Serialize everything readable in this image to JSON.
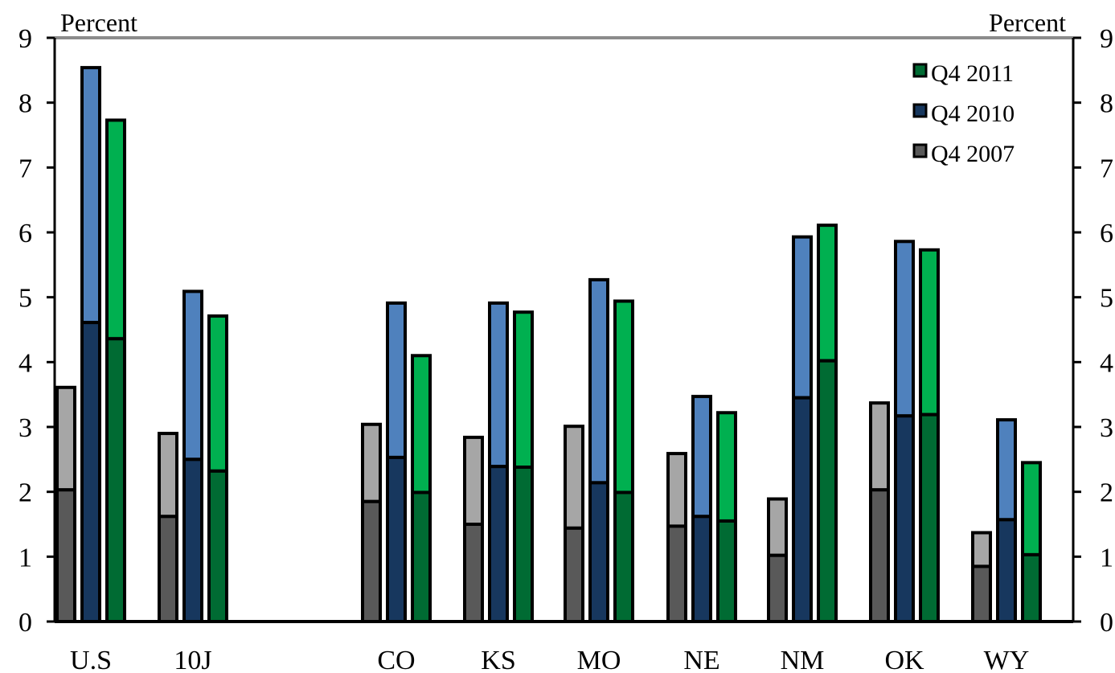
{
  "chart_data": {
    "type": "bar",
    "subtype": "overlapping stacked bars (bottom segment and total per period)",
    "title": "",
    "y_unit_left": "Percent",
    "y_unit_right": "Percent",
    "ylim": [
      0,
      9
    ],
    "yticks": [
      "0",
      "1",
      "2",
      "3",
      "4",
      "5",
      "6",
      "7",
      "8",
      "9"
    ],
    "grid": false,
    "legend_position": "top-right",
    "categories": [
      "U.S",
      "10J",
      "CO",
      "KS",
      "MO",
      "NE",
      "NM",
      "OK",
      "WY"
    ],
    "series": [
      {
        "name": "Q4 2007",
        "colors": {
          "lower": "#595959",
          "upper": "#a6a6a6"
        },
        "lower": [
          2.03,
          1.62,
          1.85,
          1.5,
          1.44,
          1.47,
          1.02,
          2.03,
          0.85
        ],
        "total": [
          3.61,
          2.9,
          3.04,
          2.84,
          3.01,
          2.59,
          1.89,
          3.37,
          1.37
        ]
      },
      {
        "name": "Q4 2010",
        "colors": {
          "lower": "#17375e",
          "upper": "#4f81bd"
        },
        "lower": [
          4.61,
          2.5,
          2.53,
          2.39,
          2.14,
          1.62,
          3.45,
          3.17,
          1.57
        ],
        "total": [
          8.54,
          5.09,
          4.91,
          4.91,
          5.27,
          3.47,
          5.93,
          5.86,
          3.11
        ]
      },
      {
        "name": "Q4 2011",
        "colors": {
          "lower": "#006b33",
          "upper": "#00b050"
        },
        "lower": [
          4.36,
          2.32,
          1.99,
          2.38,
          1.99,
          1.55,
          4.02,
          3.19,
          1.03
        ],
        "total": [
          7.73,
          4.71,
          4.1,
          4.77,
          4.94,
          3.22,
          6.11,
          5.73,
          2.45
        ]
      }
    ],
    "legend_order": [
      "Q4 2011",
      "Q4 2010",
      "Q4 2007"
    ]
  }
}
